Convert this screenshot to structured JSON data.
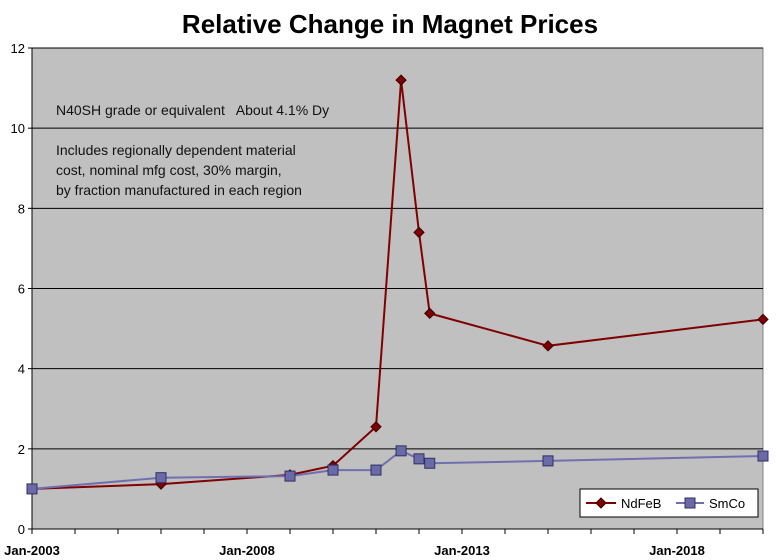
{
  "chart_data": {
    "type": "line",
    "title": "Relative Change in Magnet Prices",
    "xlabel": "",
    "ylabel": "",
    "ylim": [
      0,
      12
    ],
    "yticks": [
      0,
      2,
      4,
      6,
      8,
      10,
      12
    ],
    "xlim": [
      "2003-01",
      "2020-01"
    ],
    "xtick_labels": [
      "Jan-2003",
      "Jan-2008",
      "Jan-2013",
      "Jan-2018"
    ],
    "grid": "horizontal",
    "legend_position": "bottom-right",
    "plot_background": "#c0c0c0",
    "annotations": [
      "N40SH grade or equivalent   About 4.1% Dy",
      "Includes regionally dependent material",
      "cost, nominal mfg cost, 30% margin,",
      "by fraction manufactured in each region"
    ],
    "series": [
      {
        "name": "NdFeB",
        "color": "#800000",
        "marker": "diamond",
        "points": [
          {
            "x": "2003-01",
            "y": 1.0
          },
          {
            "x": "2006-01",
            "y": 1.12
          },
          {
            "x": "2009-01",
            "y": 1.35
          },
          {
            "x": "2010-01",
            "y": 1.58
          },
          {
            "x": "2011-01",
            "y": 2.55
          },
          {
            "x": "2011-08",
            "y": 11.2
          },
          {
            "x": "2012-01",
            "y": 7.4
          },
          {
            "x": "2012-04",
            "y": 5.38
          },
          {
            "x": "2015-01",
            "y": 4.57
          },
          {
            "x": "2020-01",
            "y": 5.23
          }
        ]
      },
      {
        "name": "SmCo",
        "color": "#7070b0",
        "marker": "square",
        "points": [
          {
            "x": "2003-01",
            "y": 1.0
          },
          {
            "x": "2006-01",
            "y": 1.28
          },
          {
            "x": "2009-01",
            "y": 1.32
          },
          {
            "x": "2010-01",
            "y": 1.47
          },
          {
            "x": "2011-01",
            "y": 1.47
          },
          {
            "x": "2011-08",
            "y": 1.95
          },
          {
            "x": "2012-01",
            "y": 1.75
          },
          {
            "x": "2012-04",
            "y": 1.64
          },
          {
            "x": "2015-01",
            "y": 1.7
          },
          {
            "x": "2020-01",
            "y": 1.82
          }
        ]
      }
    ]
  }
}
